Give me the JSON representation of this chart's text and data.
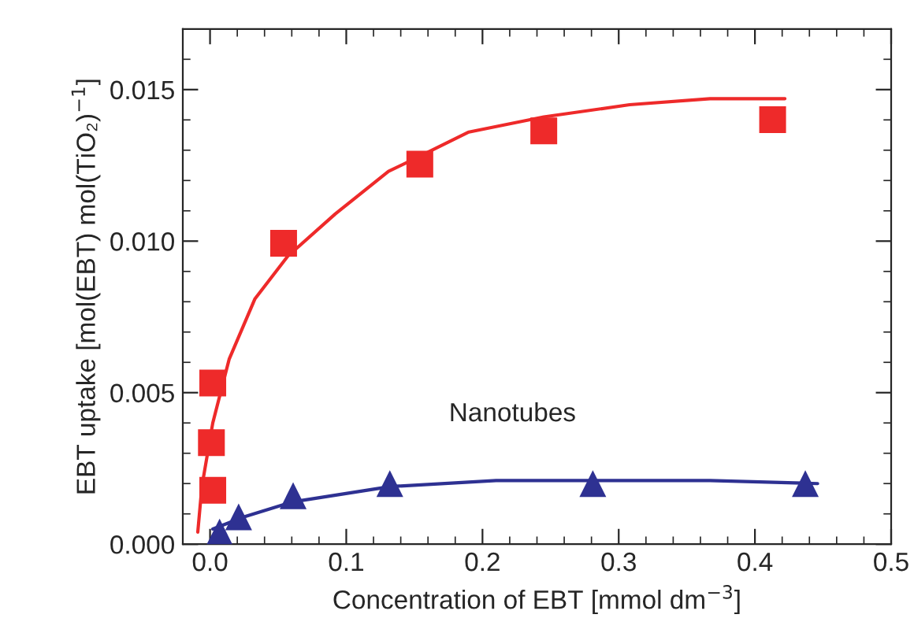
{
  "chart_data": {
    "type": "scatter",
    "xlabel": "Concentration of EBT [mmol dm$^{−3}$]",
    "ylabel": "EBT uptake [mol(EBT) mol(TiO₂)$^{−1}$]",
    "xlim": [
      -0.02,
      0.5
    ],
    "ylim": [
      0,
      0.017
    ],
    "xticks": [
      {
        "value": 0,
        "label": "0.0"
      },
      0.1,
      0.2,
      0.3,
      0.4,
      0.5
    ],
    "yticks": [
      {
        "value": 0,
        "label": "0.000"
      },
      0.005,
      {
        "value": 0.01,
        "label": "0.010"
      },
      0.015
    ],
    "grid": false,
    "series": [
      {
        "type": "line",
        "color": "#ee2a2a",
        "marker": "none",
        "x": [
          -0.009,
          -0.006,
          0.002,
          0.014,
          0.033,
          0.057,
          0.092,
          0.131,
          0.154,
          0.19,
          0.245,
          0.308,
          0.367,
          0.422
        ],
        "values": [
          0.0004,
          0.0019,
          0.004,
          0.0061,
          0.0081,
          0.0095,
          0.0109,
          0.0123,
          0.0128,
          0.0136,
          0.0141,
          0.0145,
          0.0147,
          0.0147
        ]
      },
      {
        "type": "line",
        "color": "#2e3192",
        "marker": "none",
        "x": [
          0.002,
          0.025,
          0.061,
          0.132,
          0.21,
          0.281,
          0.367,
          0.446
        ],
        "values": [
          0.0005,
          0.0009,
          0.0014,
          0.0019,
          0.0021,
          0.0021,
          0.0021,
          0.002
        ]
      },
      {
        "color": "#ee2a2a",
        "marker": "square",
        "x": [
          0.001,
          0.002,
          0.002,
          0.054,
          0.154,
          0.245,
          0.413
        ],
        "values": [
          0.00335,
          0.00178,
          0.00532,
          0.00993,
          0.01254,
          0.01364,
          0.01401
        ]
      },
      {
        "name": "Nanotubes",
        "color": "#2e3192",
        "marker": "triangle",
        "x": [
          0.007,
          0.021,
          0.061,
          0.132,
          0.281,
          0.437
        ],
        "values": [
          0.0004,
          0.0009,
          0.0016,
          0.002,
          0.002,
          0.002
        ]
      }
    ]
  }
}
